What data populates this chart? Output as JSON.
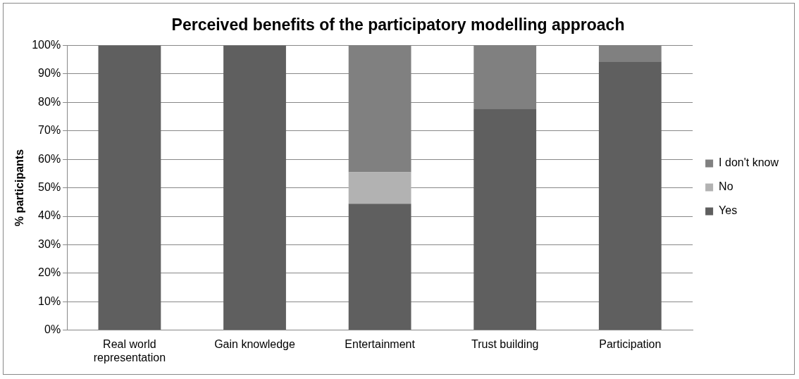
{
  "chart_data": {
    "type": "bar",
    "title": "Perceived benefits of the participatory modelling approach",
    "ylabel": "% participants",
    "categories": [
      "Real world representation",
      "Gain knowledge",
      "Entertainment",
      "Trust building",
      "Participation"
    ],
    "stacked": true,
    "series": [
      {
        "name": "Yes",
        "color": "#5f5f5f",
        "values": [
          100,
          100,
          44.4,
          77.8,
          94.4
        ]
      },
      {
        "name": "No",
        "color": "#b2b2b2",
        "values": [
          0,
          0,
          11.1,
          0,
          0
        ]
      },
      {
        "name": "I don't know",
        "color": "#808080",
        "values": [
          0,
          0,
          44.5,
          22.2,
          5.6
        ]
      }
    ],
    "ylim": [
      0,
      100
    ],
    "yticks": [
      {
        "value": 0,
        "label": "0%"
      },
      {
        "value": 10,
        "label": "10%"
      },
      {
        "value": 20,
        "label": "20%"
      },
      {
        "value": 30,
        "label": "30%"
      },
      {
        "value": 40,
        "label": "40%"
      },
      {
        "value": 50,
        "label": "50%"
      },
      {
        "value": 60,
        "label": "60%"
      },
      {
        "value": 70,
        "label": "70%"
      },
      {
        "value": 80,
        "label": "80%"
      },
      {
        "value": 90,
        "label": "90%"
      },
      {
        "value": 100,
        "label": "100%"
      }
    ],
    "grid": "y",
    "legend": "right"
  }
}
